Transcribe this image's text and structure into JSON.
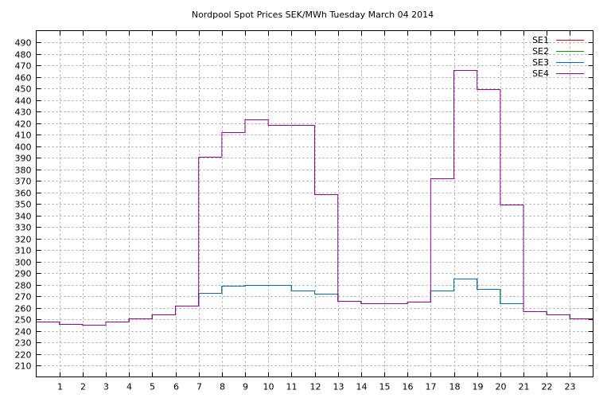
{
  "chart_data": {
    "type": "line",
    "step": true,
    "title": "Nordpool Spot Prices SEK/MWh Tuesday March 04 2014",
    "xlabel": "",
    "ylabel": "",
    "xlim": [
      0,
      24
    ],
    "ylim": [
      200,
      500
    ],
    "xticks": [
      1,
      2,
      3,
      4,
      5,
      6,
      7,
      8,
      9,
      10,
      11,
      12,
      13,
      14,
      15,
      16,
      17,
      18,
      19,
      20,
      21,
      22,
      23
    ],
    "yticks": [
      210,
      220,
      230,
      240,
      250,
      260,
      270,
      280,
      290,
      300,
      310,
      320,
      330,
      340,
      350,
      360,
      370,
      380,
      390,
      400,
      410,
      420,
      430,
      440,
      450,
      460,
      470,
      480,
      490
    ],
    "grid": true,
    "legend_position": "top-right",
    "x": [
      0,
      1,
      2,
      3,
      4,
      5,
      6,
      7,
      8,
      9,
      10,
      11,
      12,
      13,
      14,
      15,
      16,
      17,
      18,
      19,
      20,
      21,
      22,
      23
    ],
    "series": [
      {
        "name": "SE1",
        "color": "#e00000",
        "values": [
          248,
          246,
          245,
          248,
          251,
          254,
          262,
          273,
          279,
          280,
          280,
          275,
          272,
          266,
          264,
          264,
          265,
          275,
          285,
          276,
          264,
          257,
          254,
          251
        ]
      },
      {
        "name": "SE2",
        "color": "#00a000",
        "values": [
          248,
          246,
          245,
          248,
          251,
          254,
          262,
          273,
          279,
          280,
          280,
          275,
          272,
          266,
          264,
          264,
          265,
          275,
          285,
          276,
          264,
          257,
          254,
          251
        ]
      },
      {
        "name": "SE3",
        "color": "#0072bd",
        "values": [
          248,
          246,
          245,
          248,
          251,
          254,
          262,
          273,
          279,
          280,
          280,
          275,
          272,
          266,
          264,
          264,
          265,
          275,
          285,
          276,
          264,
          257,
          254,
          251
        ]
      },
      {
        "name": "SE4",
        "color": "#a000a0",
        "values": [
          248,
          246,
          245,
          248,
          251,
          254,
          262,
          391,
          412,
          423,
          418,
          418,
          358,
          266,
          264,
          264,
          265,
          372,
          466,
          449,
          349,
          257,
          254,
          251
        ]
      }
    ]
  }
}
